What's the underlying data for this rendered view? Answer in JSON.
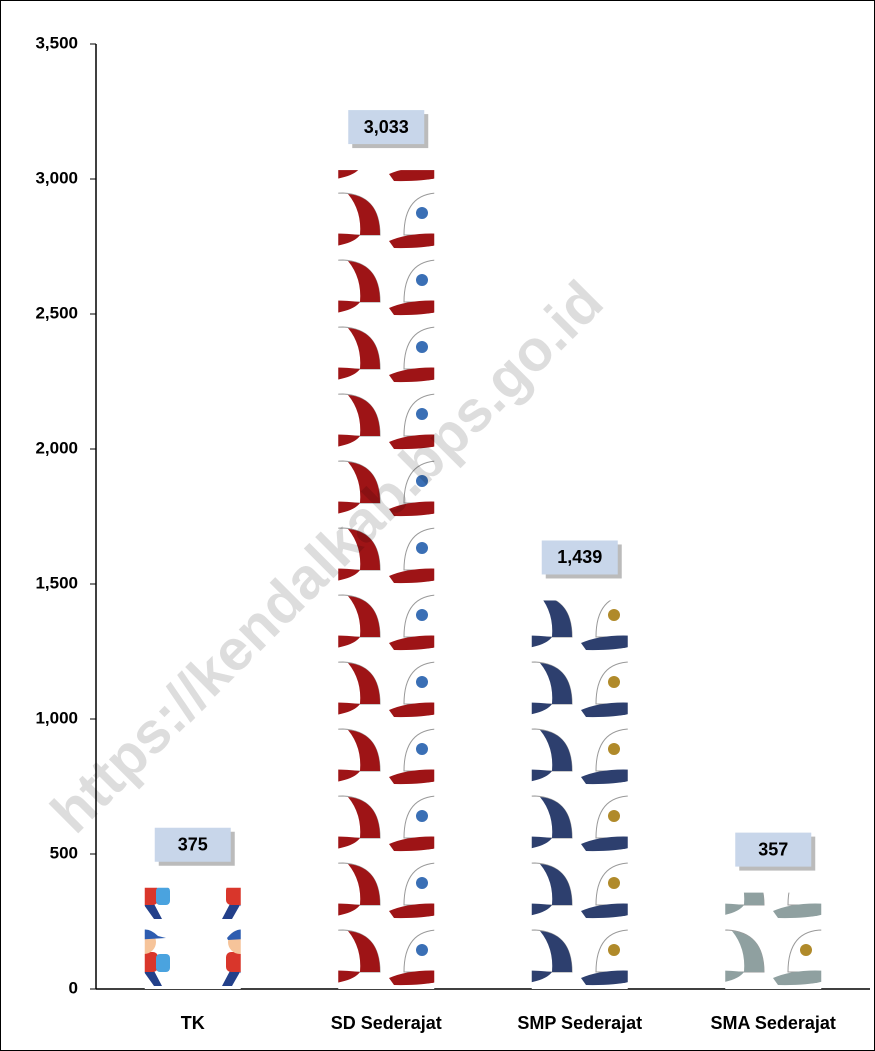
{
  "chart_data": {
    "type": "pictograph",
    "categories": [
      "TK",
      "SD Sederajat",
      "SMP Sederajat",
      "SMA Sederajat"
    ],
    "values": [
      375,
      3033,
      1439,
      357
    ],
    "value_labels": [
      "375",
      "3,033",
      "1,439",
      "357"
    ],
    "colors": [
      "#d9362b",
      "#9e1416",
      "#2d3f6e",
      "#8fa0a0"
    ],
    "ylim": [
      0,
      3500
    ],
    "yticks": [
      0,
      500,
      {
        "value": 1000,
        "label": "1,000"
      },
      {
        "value": 1500,
        "label": "1,500"
      },
      {
        "value": 2000,
        "label": "2,000"
      },
      {
        "value": 2500,
        "label": "2,500"
      },
      {
        "value": 3000,
        "label": "3,000"
      },
      {
        "value": 3500,
        "label": "3,500"
      }
    ],
    "grid": false
  },
  "watermark": "https://kendalkab.bps.go.id"
}
